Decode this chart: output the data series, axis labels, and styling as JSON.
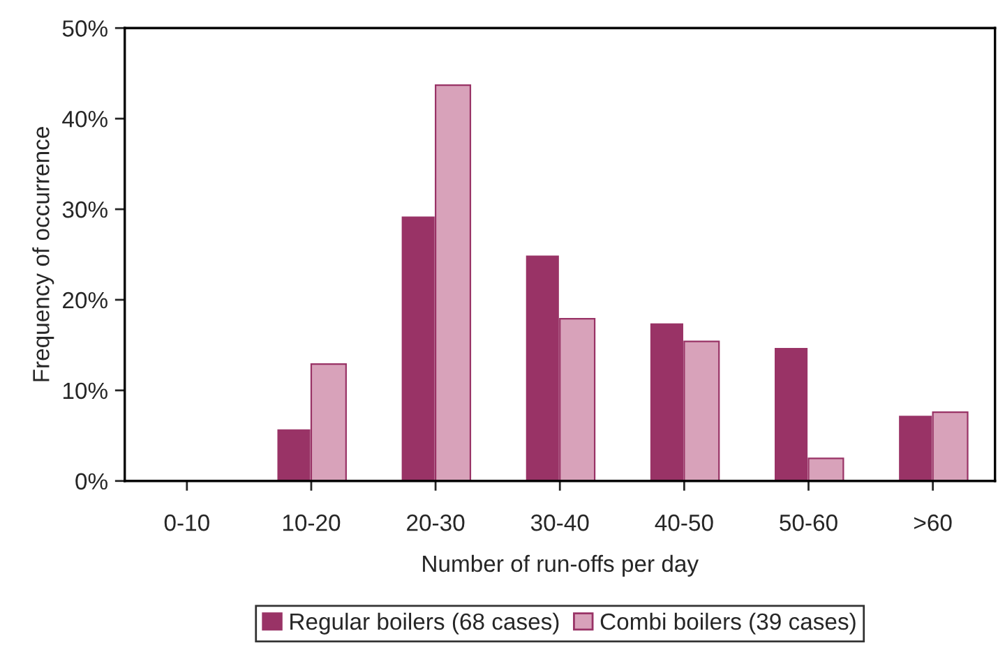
{
  "chart_data": {
    "type": "bar",
    "categories": [
      "0-10",
      "10-20",
      "20-30",
      "30-40",
      "40-50",
      "50-60",
      ">60"
    ],
    "series": [
      {
        "name": "Regular boilers (68 cases)",
        "color": "#993366",
        "values": [
          0,
          5.8,
          29.3,
          25.0,
          17.5,
          14.8,
          7.3
        ]
      },
      {
        "name": "Combi boilers (39 cases)",
        "color": "#d8a2ba",
        "values": [
          0,
          12.9,
          43.7,
          17.9,
          15.4,
          2.5,
          7.6
        ]
      }
    ],
    "xlabel": "Number of run-offs per day",
    "ylabel": "Frequency of occurrence",
    "ylim": [
      0,
      50
    ],
    "yticks": [
      {
        "value": 0,
        "label": "0%"
      },
      {
        "value": 10,
        "label": "10%"
      },
      {
        "value": 20,
        "label": "20%"
      },
      {
        "value": 30,
        "label": "30%"
      },
      {
        "value": 40,
        "label": "40%"
      },
      {
        "value": 50,
        "label": "50%"
      }
    ],
    "grid": false,
    "legend": "bottom"
  }
}
